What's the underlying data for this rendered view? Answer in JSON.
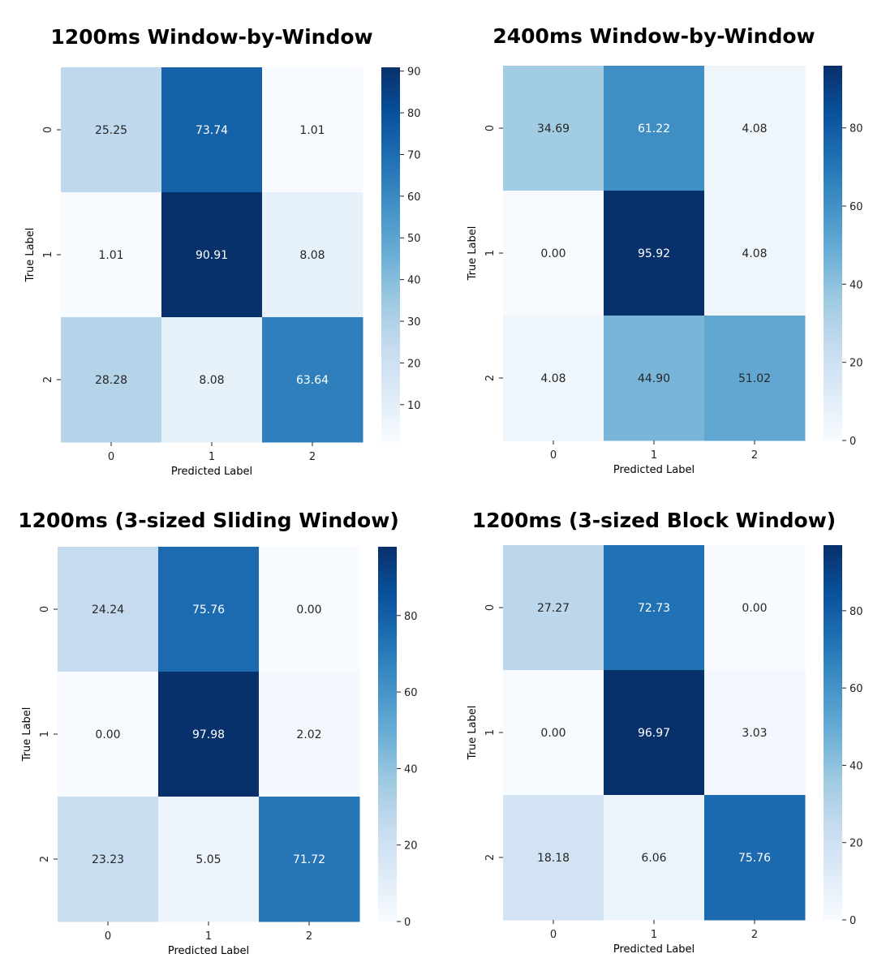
{
  "chart_data": [
    {
      "type": "heatmap",
      "title": "1200ms Window-by-Window",
      "xlabel": "Predicted Label",
      "ylabel": "True Label",
      "x_categories": [
        "0",
        "1",
        "2"
      ],
      "y_categories": [
        "0",
        "1",
        "2"
      ],
      "values": [
        [
          25.25,
          73.74,
          1.01
        ],
        [
          1.01,
          90.91,
          8.08
        ],
        [
          28.28,
          8.08,
          63.64
        ]
      ],
      "colorbar": {
        "min": 1.01,
        "max": 90.91,
        "ticks": [
          10,
          20,
          30,
          40,
          50,
          60,
          70,
          80,
          90
        ]
      },
      "colormap": "Blues"
    },
    {
      "type": "heatmap",
      "title": "2400ms Window-by-Window",
      "xlabel": "Predicted Label",
      "ylabel": "True Label",
      "x_categories": [
        "0",
        "1",
        "2"
      ],
      "y_categories": [
        "0",
        "1",
        "2"
      ],
      "values": [
        [
          34.69,
          61.22,
          4.08
        ],
        [
          0.0,
          95.92,
          4.08
        ],
        [
          4.08,
          44.9,
          51.02
        ]
      ],
      "colorbar": {
        "min": 0,
        "max": 95.92,
        "ticks": [
          0,
          20,
          40,
          60,
          80
        ]
      },
      "colormap": "Blues"
    },
    {
      "type": "heatmap",
      "title": "1200ms (3-sized Sliding Window)",
      "xlabel": "Predicted Label",
      "ylabel": "True Label",
      "x_categories": [
        "0",
        "1",
        "2"
      ],
      "y_categories": [
        "0",
        "1",
        "2"
      ],
      "values": [
        [
          24.24,
          75.76,
          0.0
        ],
        [
          0.0,
          97.98,
          2.02
        ],
        [
          23.23,
          5.05,
          71.72
        ]
      ],
      "colorbar": {
        "min": 0,
        "max": 97.98,
        "ticks": [
          0,
          20,
          40,
          60,
          80
        ]
      },
      "colormap": "Blues"
    },
    {
      "type": "heatmap",
      "title": "1200ms (3-sized Block Window)",
      "xlabel": "Predicted Label",
      "ylabel": "True Label",
      "x_categories": [
        "0",
        "1",
        "2"
      ],
      "y_categories": [
        "0",
        "1",
        "2"
      ],
      "values": [
        [
          27.27,
          72.73,
          0.0
        ],
        [
          0.0,
          96.97,
          3.03
        ],
        [
          18.18,
          6.06,
          75.76
        ]
      ],
      "colorbar": {
        "min": 0,
        "max": 96.97,
        "ticks": [
          0,
          20,
          40,
          60,
          80
        ]
      },
      "colormap": "Blues"
    }
  ]
}
